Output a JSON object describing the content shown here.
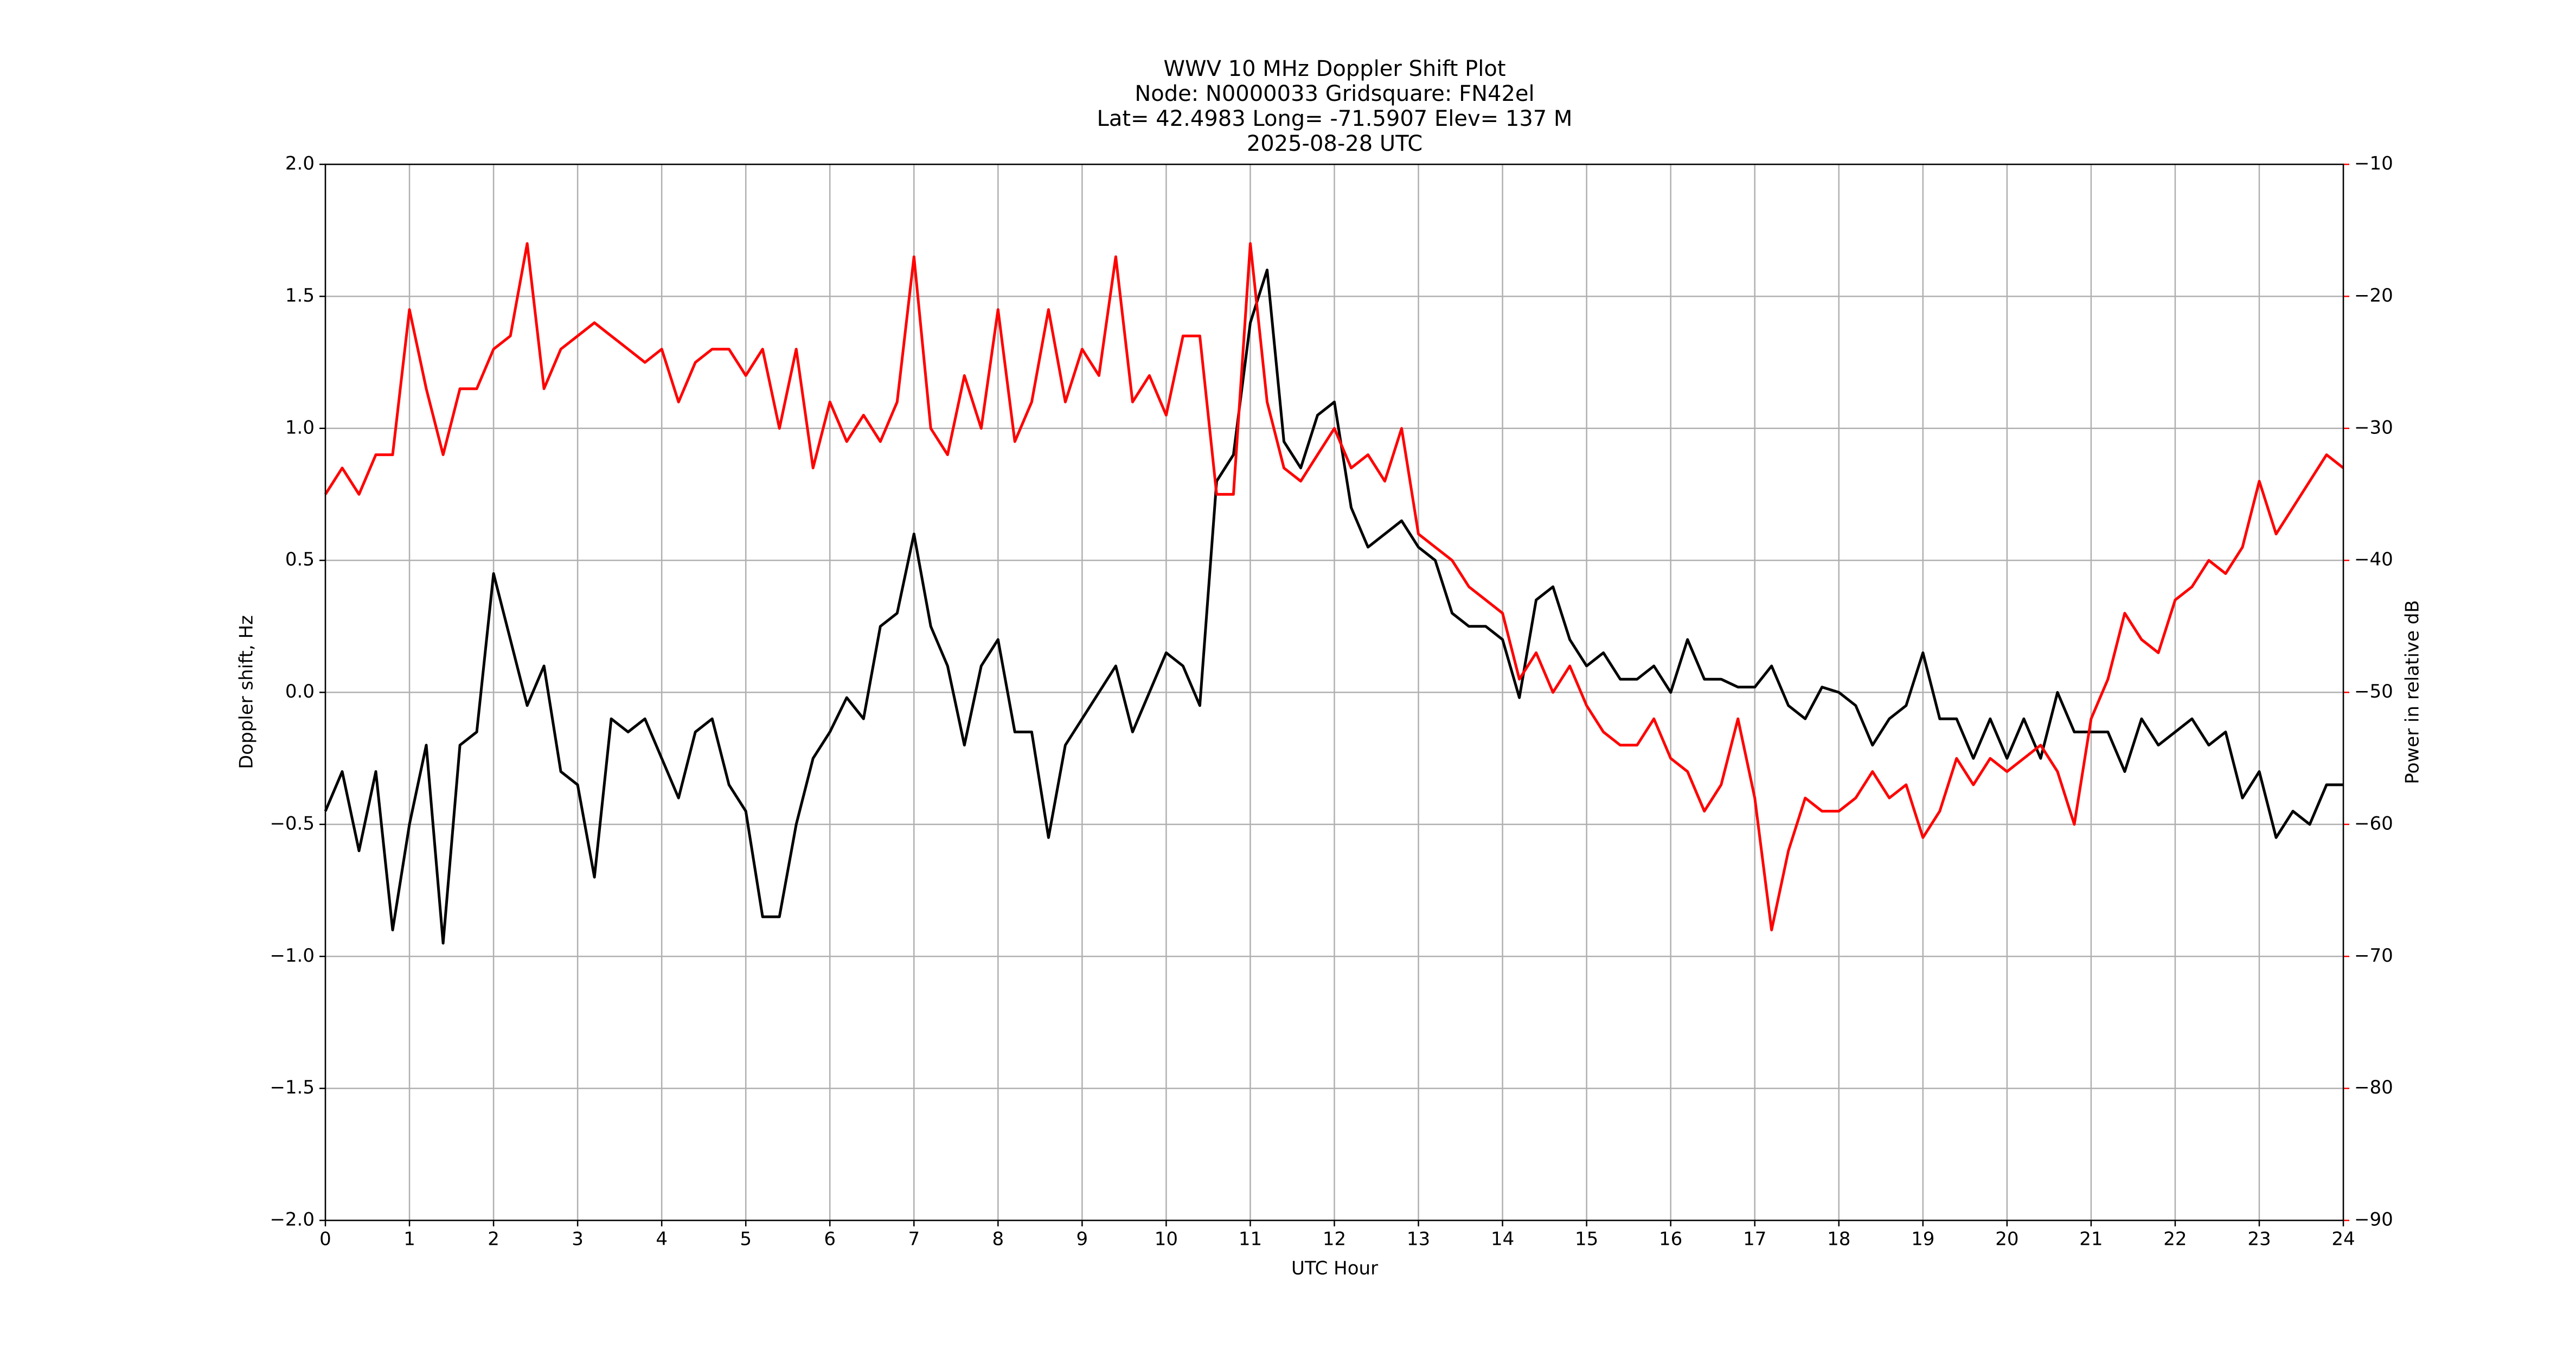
{
  "chart_data": {
    "type": "line",
    "title": [
      "WWV 10 MHz Doppler Shift Plot",
      "Node:  N0000033     Gridsquare:  FN42el",
      "Lat= 42.4983    Long= -71.5907    Elev= 137 M",
      "2025-08-28  UTC"
    ],
    "xlabel": "UTC Hour",
    "ylabel": "Doppler shift, Hz",
    "y2label": "Power in relative dB",
    "grid": true,
    "xlim": [
      0,
      24
    ],
    "xticks": [
      0,
      1,
      2,
      3,
      4,
      5,
      6,
      7,
      8,
      9,
      10,
      11,
      12,
      13,
      14,
      15,
      16,
      17,
      18,
      19,
      20,
      21,
      22,
      23,
      24
    ],
    "ylim": [
      -2,
      2
    ],
    "yticks": [
      {
        "value": -2,
        "label": "−2.0"
      },
      {
        "value": -1.5,
        "label": "−1.5"
      },
      {
        "value": -1,
        "label": "−1.0"
      },
      {
        "value": -0.5,
        "label": "−0.5"
      },
      {
        "value": 0,
        "label": "0.0"
      },
      {
        "value": 0.5,
        "label": "0.5"
      },
      {
        "value": 1,
        "label": "1.0"
      },
      {
        "value": 1.5,
        "label": "1.5"
      },
      {
        "value": 2,
        "label": "2.0"
      }
    ],
    "y2lim": [
      -90,
      -10
    ],
    "y2ticks": [
      {
        "value": -90,
        "label": "−90"
      },
      {
        "value": -80,
        "label": "−80"
      },
      {
        "value": -70,
        "label": "−70"
      },
      {
        "value": -60,
        "label": "−60"
      },
      {
        "value": -50,
        "label": "−50"
      },
      {
        "value": -40,
        "label": "−40"
      },
      {
        "value": -30,
        "label": "−30"
      },
      {
        "value": -20,
        "label": "−20"
      },
      {
        "value": -10,
        "label": "−10"
      }
    ],
    "y2color": "#ff0000",
    "x": [
      0,
      0.2,
      0.4,
      0.6,
      0.8,
      1,
      1.2,
      1.4,
      1.6,
      1.8,
      2,
      2.2,
      2.4,
      2.6,
      2.8,
      3,
      3.2,
      3.4,
      3.6,
      3.8,
      4,
      4.2,
      4.4,
      4.6,
      4.8,
      5,
      5.2,
      5.4,
      5.6,
      5.8,
      6,
      6.2,
      6.4,
      6.6,
      6.8,
      7,
      7.2,
      7.4,
      7.6,
      7.8,
      8,
      8.2,
      8.4,
      8.6,
      8.8,
      9,
      9.2,
      9.4,
      9.6,
      9.8,
      10,
      10.2,
      10.4,
      10.6,
      10.8,
      11,
      11.2,
      11.4,
      11.6,
      11.8,
      12,
      12.2,
      12.4,
      12.6,
      12.8,
      13,
      13.2,
      13.4,
      13.6,
      13.8,
      14,
      14.2,
      14.4,
      14.6,
      14.8,
      15,
      15.2,
      15.4,
      15.6,
      15.8,
      16,
      16.2,
      16.4,
      16.6,
      16.8,
      17,
      17.2,
      17.4,
      17.6,
      17.8,
      18,
      18.2,
      18.4,
      18.6,
      18.8,
      19,
      19.2,
      19.4,
      19.6,
      19.8,
      20,
      20.2,
      20.4,
      20.6,
      20.8,
      21,
      21.2,
      21.4,
      21.6,
      21.8,
      22,
      22.2,
      22.4,
      22.6,
      22.8,
      23,
      23.2,
      23.4,
      23.6,
      23.8,
      24
    ],
    "series": [
      {
        "color": "#000000",
        "axis": "y",
        "values": [
          -0.45,
          -0.3,
          -0.6,
          -0.3,
          -0.9,
          -0.5,
          -0.2,
          -0.95,
          -0.2,
          -0.15,
          0.45,
          0.2,
          -0.05,
          0.1,
          -0.3,
          -0.35,
          -0.7,
          -0.1,
          -0.15,
          -0.1,
          -0.25,
          -0.4,
          -0.15,
          -0.1,
          -0.35,
          -0.45,
          -0.85,
          -0.85,
          -0.5,
          -0.25,
          -0.15,
          -0.02,
          -0.1,
          0.25,
          0.3,
          0.6,
          0.25,
          0.1,
          -0.2,
          0.1,
          0.2,
          -0.15,
          -0.15,
          -0.55,
          -0.2,
          -0.1,
          0,
          0.1,
          -0.15,
          0,
          0.15,
          0.1,
          -0.05,
          0.8,
          0.9,
          1.4,
          1.6,
          0.95,
          0.85,
          1.05,
          1.1,
          0.7,
          0.55,
          0.6,
          0.65,
          0.55,
          0.5,
          0.3,
          0.25,
          0.25,
          0.2,
          -0.02,
          0.35,
          0.4,
          0.2,
          0.1,
          0.15,
          0.05,
          0.05,
          0.1,
          0,
          0.2,
          0.05,
          0.05,
          0.02,
          0.02,
          0.1,
          -0.05,
          -0.1,
          0.02,
          0,
          -0.05,
          -0.2,
          -0.1,
          -0.05,
          0.15,
          -0.1,
          -0.1,
          -0.25,
          -0.1,
          -0.25,
          -0.1,
          -0.25,
          0,
          -0.15,
          -0.15,
          -0.15,
          -0.3,
          -0.1,
          -0.2,
          -0.15,
          -0.1,
          -0.2,
          -0.15,
          -0.4,
          -0.3,
          -0.55,
          -0.45,
          -0.5,
          -0.35,
          -0.35
        ]
      },
      {
        "color": "#ff0000",
        "axis": "y2",
        "values": [
          -35,
          -33,
          -35,
          -32,
          -32,
          -21,
          -27,
          -32,
          -27,
          -27,
          -24,
          -23,
          -16,
          -27,
          -24,
          -23,
          -22,
          -23,
          -24,
          -25,
          -24,
          -28,
          -25,
          -24,
          -24,
          -26,
          -24,
          -30,
          -24,
          -33,
          -28,
          -31,
          -29,
          -31,
          -28,
          -17,
          -30,
          -32,
          -26,
          -30,
          -21,
          -31,
          -28,
          -21,
          -28,
          -24,
          -26,
          -17,
          -28,
          -26,
          -29,
          -23,
          -23,
          -35,
          -35,
          -16,
          -28,
          -33,
          -34,
          -32,
          -30,
          -33,
          -32,
          -34,
          -30,
          -38,
          -39,
          -40,
          -42,
          -43,
          -44,
          -49,
          -47,
          -50,
          -48,
          -51,
          -53,
          -54,
          -54,
          -52,
          -55,
          -56,
          -59,
          -57,
          -52,
          -58,
          -68,
          -62,
          -58,
          -59,
          -59,
          -58,
          -56,
          -58,
          -57,
          -61,
          -59,
          -55,
          -57,
          -55,
          -56,
          -55,
          -54,
          -56,
          -60,
          -52,
          -49,
          -44,
          -46,
          -47,
          -43,
          -42,
          -40,
          -41,
          -39,
          -34,
          -38,
          -36,
          -34,
          -32,
          -33
        ]
      }
    ]
  }
}
